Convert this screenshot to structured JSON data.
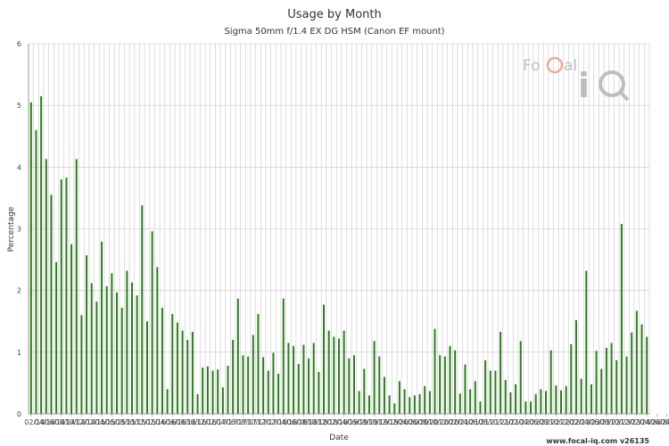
{
  "chart_data": {
    "type": "bar",
    "title": "Usage by Month",
    "subtitle": "Sigma 50mm f/1.4 EX DG HSM (Canon EF mount)",
    "xlabel": "Date",
    "ylabel": "Percentage",
    "ylim": [
      0,
      6
    ],
    "yticks": [
      "0",
      "1",
      "2",
      "3",
      "4",
      "5",
      "6"
    ],
    "grid": true,
    "color": "#2d7a1f",
    "tick_labels": [
      "02/14",
      "04/14",
      "06/14",
      "08/14",
      "10/14",
      "12/14",
      "02/15",
      "04/15",
      "06/15",
      "08/15",
      "10/15",
      "12/15",
      "02/16",
      "04/16",
      "06/16",
      "08/16",
      "10/16",
      "12/16",
      "02/17",
      "04/17",
      "06/17",
      "08/17",
      "10/17",
      "12/17",
      "02/18",
      "04/18",
      "06/18",
      "08/18",
      "10/18",
      "12/18",
      "02/19",
      "04/19",
      "06/19",
      "08/19",
      "10/19",
      "12/19",
      "02/20",
      "04/20",
      "06/20",
      "08/20",
      "10/20",
      "12/20",
      "02/21",
      "04/21",
      "06/21",
      "08/21",
      "10/21",
      "12/21",
      "02/22",
      "04/22",
      "06/22",
      "08/22",
      "10/22",
      "12/22",
      "02/23",
      "04/23",
      "06/23",
      "08/23",
      "10/23",
      "12/23",
      "02/24",
      "04/24",
      "06/24",
      "08/24",
      "10/24",
      "12/24",
      "02/25",
      "04/25",
      "06/25",
      "08/25",
      "10/25",
      "12/25"
    ],
    "values": [
      5.05,
      4.6,
      5.15,
      4.13,
      3.55,
      2.46,
      3.8,
      3.83,
      2.75,
      4.13,
      1.6,
      2.57,
      2.12,
      1.82,
      2.79,
      2.07,
      2.28,
      1.97,
      1.72,
      2.32,
      2.13,
      1.92,
      3.38,
      1.5,
      2.96,
      2.38,
      1.72,
      0.4,
      1.62,
      1.48,
      1.35,
      1.2,
      1.33,
      0.32,
      0.75,
      0.77,
      0.7,
      0.72,
      0.43,
      0.78,
      1.2,
      1.87,
      0.95,
      0.93,
      1.28,
      1.62,
      0.92,
      0.7,
      0.99,
      0.65,
      1.87,
      1.15,
      1.1,
      0.81,
      1.12,
      0.9,
      1.15,
      0.68,
      1.77,
      1.35,
      1.25,
      1.22,
      1.35,
      0.9,
      0.95,
      0.37,
      0.73,
      0.3,
      1.18,
      0.93,
      0.6,
      0.3,
      0.17,
      0.53,
      0.4,
      0.27,
      0.3,
      0.32,
      0.45,
      0.37,
      1.38,
      0.95,
      0.93,
      1.1,
      1.03,
      0.33,
      0.8,
      0.4,
      0.53,
      0.2,
      0.87,
      0.7,
      0.7,
      1.33,
      0.55,
      0.35,
      0.48,
      1.18,
      0.2,
      0.2,
      0.32,
      0.4,
      0.37,
      1.03,
      0.46,
      0.38,
      0.45,
      1.13,
      1.52,
      0.57,
      2.32,
      0.48,
      1.02,
      0.73,
      1.07,
      1.15,
      0.87,
      3.08,
      0.93,
      1.32,
      1.67,
      1.45,
      1.25
    ]
  },
  "footer": "www.focal-iq.com  v26135",
  "logo": {
    "text_a": "Fo",
    "text_b": "al",
    "text_c": "iQ",
    "ring": "c"
  }
}
